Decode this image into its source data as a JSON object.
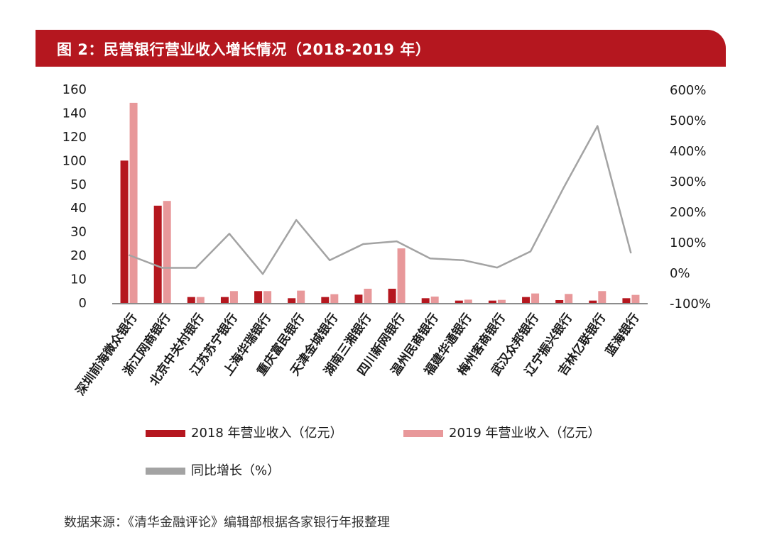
{
  "header": {
    "title": "图 2：民营银行营业收入增长情况（2018-2019 年）"
  },
  "colors": {
    "banner": "#b5171f",
    "series_2018": "#b5171f",
    "series_2019": "#e8989a",
    "series_growth": "#a3a3a3"
  },
  "chart_data": {
    "type": "bar",
    "categories": [
      "深圳前海微众银行",
      "浙江网商银行",
      "北京中关村银行",
      "江苏苏宁银行",
      "上海华瑞银行",
      "重庆富民银行",
      "天津金城银行",
      "湖南三湘银行",
      "四川新网银行",
      "温州民商银行",
      "福建华通银行",
      "梅州客商银行",
      "武汉众邦银行",
      "辽宁振兴银行",
      "吉林亿联银行",
      "蓝海银行"
    ],
    "left_axis_ticks": [
      "0",
      "10",
      "20",
      "30",
      "40",
      "50",
      "100",
      "120",
      "140",
      "160"
    ],
    "right_axis_ticks": [
      "-100%",
      "0%",
      "100%",
      "200%",
      "300%",
      "400%",
      "500%",
      "600%"
    ],
    "right_axis_range": [
      -100,
      600
    ],
    "series": [
      {
        "name": "2018 年营业收入（亿元）",
        "kind": "bar",
        "values": [
          100.0,
          41,
          2.5,
          2.5,
          5,
          2,
          2.5,
          3.5,
          6,
          2,
          1,
          1,
          2.5,
          1.2,
          1,
          2
        ]
      },
      {
        "name": "2019 年营业收入（亿元）",
        "kind": "bar",
        "values": [
          148.7,
          43,
          2.5,
          5,
          5,
          5.2,
          3.7,
          6,
          23,
          2.7,
          1.4,
          1.3,
          4,
          3.8,
          5,
          3.4
        ]
      },
      {
        "name": "同比增长（%）",
        "kind": "line",
        "axis": "right",
        "values": [
          57,
          15,
          15,
          127,
          -5,
          172,
          40,
          93,
          102,
          46,
          40,
          16,
          69,
          280,
          480,
          63
        ]
      }
    ],
    "legend_position": "bottom",
    "grid": false
  },
  "source": "数据来源：《清华金融评论》编辑部根据各家银行年报整理"
}
